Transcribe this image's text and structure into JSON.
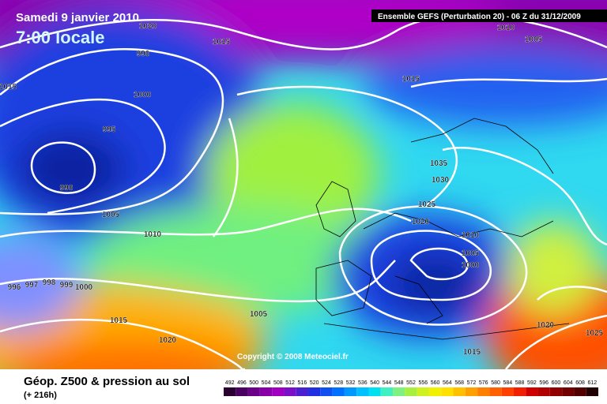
{
  "header": {
    "date": "Samedi 9 janvier 2010",
    "time": "7:00 locale",
    "model": "Ensemble GEFS (Perturbation 20)  -  06 Z du 31/12/2009"
  },
  "map": {
    "isobar_labels": [
      1020,
      1015,
      990,
      1000,
      995,
      990,
      1005,
      1010,
      1015,
      1010,
      1005,
      1015,
      1035,
      1030,
      1025,
      1020,
      1010,
      1005,
      1000,
      1005,
      1015,
      1020,
      1015,
      1020,
      1025,
      996,
      997,
      998,
      999,
      1000
    ],
    "copyright": "Copyright © 2008 Meteociel.fr"
  },
  "footer": {
    "title": "Géop. Z500 & pression au sol",
    "lead": "(+ 216h)",
    "colorbar": {
      "labels": [
        492,
        496,
        500,
        504,
        508,
        512,
        516,
        520,
        524,
        528,
        532,
        536,
        540,
        544,
        548,
        552,
        556,
        560,
        564,
        568,
        572,
        576,
        580,
        584,
        588,
        592,
        596,
        600,
        604,
        608,
        612
      ],
      "colors": [
        "#2a0030",
        "#4a0060",
        "#6a0088",
        "#8a00a8",
        "#a000c0",
        "#7a10c8",
        "#4a20d0",
        "#2030e0",
        "#1050f0",
        "#0070ff",
        "#0098ff",
        "#00c0ff",
        "#00e0f0",
        "#40f0c0",
        "#80f080",
        "#a8f040",
        "#d0f020",
        "#f0f000",
        "#ffe000",
        "#ffc000",
        "#ffa000",
        "#ff8000",
        "#ff6000",
        "#ff4000",
        "#f02000",
        "#d00000",
        "#b00000",
        "#900000",
        "#700000",
        "#500000",
        "#200000"
      ]
    }
  }
}
